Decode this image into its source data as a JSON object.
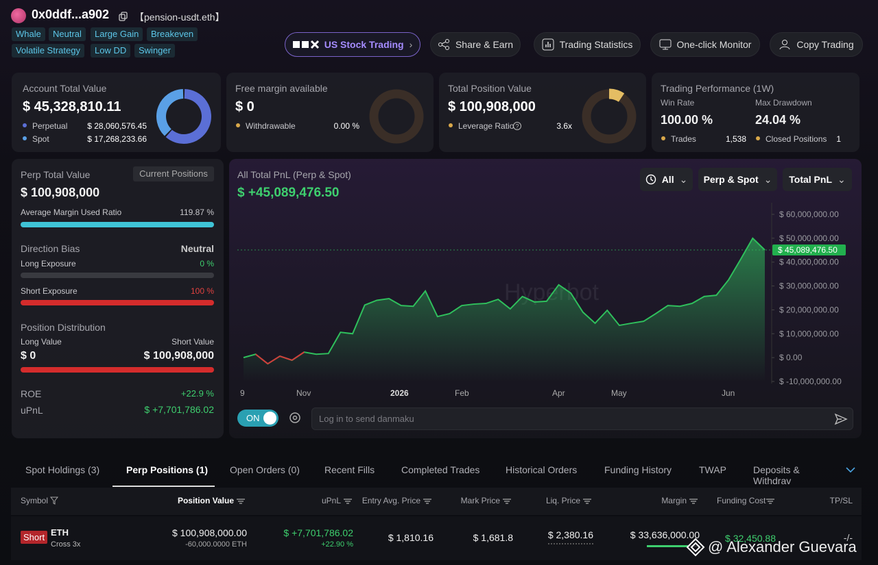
{
  "header": {
    "address": "0x0ddf...a902",
    "ens": "【pension-usdt.eth】",
    "tags": [
      "Whale",
      "Neutral",
      "Large Gain",
      "Breakeven",
      "Volatile Strategy",
      "Low DD",
      "Swinger"
    ],
    "buttons": [
      "US Stock Trading",
      "Share & Earn",
      "Trading Statistics",
      "One-click Monitor",
      "Copy Trading"
    ]
  },
  "cards": {
    "account": {
      "title": "Account Total Value",
      "value": "$ 45,328,810.11",
      "rows": [
        {
          "label": "Perpetual",
          "amount": 28060576.45,
          "amount_label": "$ 28,060,576.45",
          "color": "#5b6fd6"
        },
        {
          "label": "Spot",
          "amount": 17268233.66,
          "amount_label": "$ 17,268,233.66",
          "color": "#5aa0e6"
        }
      ]
    },
    "margin": {
      "title": "Free margin available",
      "value": "$ 0",
      "row_label": "Withdrawable",
      "row_value": "0.00 %"
    },
    "position": {
      "title": "Total Position Value",
      "value": "$ 100,908,000",
      "row_label": "Leverage Ratio",
      "row_value": "3.6x"
    },
    "performance": {
      "title": "Trading Performance (1W)",
      "win_rate_label": "Win Rate",
      "win_rate": "100.00 %",
      "drawdown_label": "Max Drawdown",
      "drawdown": "24.04 %",
      "trades_label": "Trades",
      "trades": "1,538",
      "closed_label": "Closed Positions",
      "closed": "1"
    }
  },
  "perp": {
    "title": "Perp Total Value",
    "badge": "Current Positions",
    "value": "$ 100,908,000",
    "margin_label": "Average Margin Used Ratio",
    "margin_value": "119.87 %",
    "bias_label": "Direction Bias",
    "bias_value": "Neutral",
    "long_label": "Long Exposure",
    "long_value": "0 %",
    "short_label": "Short Exposure",
    "short_value": "100 %",
    "dist_label": "Position Distribution",
    "long_value_label": "Long Value",
    "short_value_label": "Short Value",
    "long_amount": "$ 0",
    "short_amount": "$ 100,908,000",
    "roe_label": "ROE",
    "roe": "+22.9 %",
    "upnl_label": "uPnL",
    "upnl": "$ +7,701,786.02"
  },
  "pnl": {
    "title": "All Total PnL (Perp & Spot)",
    "value": "$ +45,089,476.50",
    "filters": [
      "All",
      "Perp & Spot",
      "Total PnL"
    ],
    "watermark": "Hyperbot",
    "x_labels": [
      "9",
      "Nov",
      "2026",
      "Feb",
      "Apr",
      "May",
      "Jun"
    ],
    "ylim": [
      -10000000,
      60000000
    ],
    "yticks": [
      {
        "value": -10000000,
        "label": "$ -10,000,000.00"
      },
      {
        "value": 0,
        "label": "$ 0.00"
      },
      {
        "value": 10000000,
        "label": "$ 10,000,000.00"
      },
      {
        "value": 20000000,
        "label": "$ 20,000,000.00"
      },
      {
        "value": 30000000,
        "label": "$ 30,000,000.00"
      },
      {
        "value": 40000000,
        "label": "$ 40,000,000.00"
      },
      {
        "value": 50000000,
        "label": "$ 50,000,000.00"
      },
      {
        "value": 60000000,
        "label": "$ 60,000,000.00"
      }
    ],
    "color": "#2fbf5c",
    "negative_color": "#d33a3a",
    "values": [
      0,
      1400000,
      -2600000,
      600000,
      -1100000,
      2300000,
      1400000,
      1700000,
      10600000,
      10000000,
      22000000,
      24000000,
      24700000,
      21800000,
      21500000,
      27900000,
      17200000,
      18400000,
      21800000,
      22400000,
      22700000,
      24400000,
      20400000,
      25600000,
      23300000,
      23600000,
      30500000,
      27000000,
      19000000,
      14400000,
      19800000,
      13500000,
      14400000,
      15200000,
      18400000,
      21800000,
      21500000,
      22700000,
      25600000,
      26100000,
      32500000,
      41100000,
      50000000,
      45089476.5
    ],
    "value_labels": [
      null,
      null,
      null,
      null,
      null,
      null,
      null,
      null,
      null,
      null,
      null,
      null,
      null,
      null,
      null,
      null,
      null,
      null,
      null,
      null,
      null,
      null,
      null,
      null,
      null,
      null,
      null,
      null,
      null,
      null,
      null,
      null,
      null,
      null,
      null,
      null,
      null,
      null,
      null,
      null,
      null,
      null,
      null,
      "$ 45,089,476.50"
    ],
    "toggle": "ON",
    "input_placeholder": "Log in to send danmaku"
  },
  "tabs": [
    "Spot Holdings (3)",
    "Perp Positions (1)",
    "Open Orders (0)",
    "Recent Fills",
    "Completed Trades",
    "Historical Orders",
    "Funding History",
    "TWAP",
    "Deposits & Withdrav"
  ],
  "table": {
    "headers": [
      "Symbol",
      "Position Value",
      "uPnL",
      "Entry Avg. Price",
      "Mark Price",
      "Liq. Price",
      "Margin",
      "Funding Cost",
      "TP/SL"
    ],
    "rows": [
      {
        "side": "Short",
        "symbol": "ETH",
        "mode": "Cross 3x",
        "position_value": "$ 100,908,000.00",
        "size": "-60,000.0000 ETH",
        "upnl": "$ +7,701,786.02",
        "upnl_pct": "+22.90 %",
        "entry": "$ 1,810.16",
        "mark": "$ 1,681.8",
        "liq": "$ 2,380.16",
        "margin": "$ 33,636,000.00",
        "funding": "$ 32,450.88",
        "tpsl": "-/-"
      }
    ]
  },
  "watermark": "@ Alexander Guevara"
}
